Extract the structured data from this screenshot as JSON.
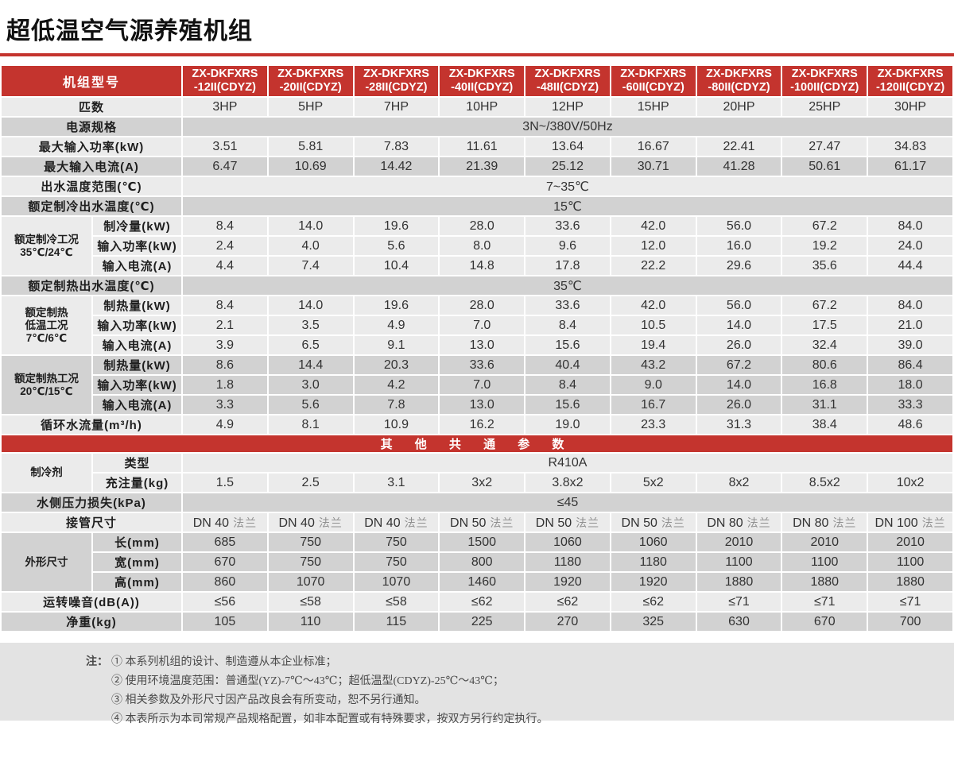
{
  "page": {
    "title": "超低温空气源养殖机组"
  },
  "colors": {
    "red": "#c4342e",
    "row_light": "#ebebeb",
    "row_dark": "#d2d2d2",
    "note_bg": "#e3e3e3"
  },
  "table": {
    "header": {
      "label": "机组型号",
      "model_prefix": "ZX-DKFXRS",
      "model_suffixes": [
        "-12II(CDYZ)",
        "-20II(CDYZ)",
        "-28II(CDYZ)",
        "-40II(CDYZ)",
        "-48II(CDYZ)",
        "-60II(CDYZ)",
        "-80II(CDYZ)",
        "-100II(CDYZ)",
        "-120II(CDYZ)"
      ]
    },
    "flange_suffix": "法兰",
    "rows": [
      {
        "type": "simple",
        "shade": "light",
        "label": "匹数",
        "values": [
          "3HP",
          "5HP",
          "7HP",
          "10HP",
          "12HP",
          "15HP",
          "20HP",
          "25HP",
          "30HP"
        ]
      },
      {
        "type": "merged",
        "shade": "dark",
        "label": "电源规格",
        "value": "3N~/380V/50Hz"
      },
      {
        "type": "simple",
        "shade": "light",
        "label": "最大输入功率(kW)",
        "values": [
          "3.51",
          "5.81",
          "7.83",
          "11.61",
          "13.64",
          "16.67",
          "22.41",
          "27.47",
          "34.83"
        ]
      },
      {
        "type": "simple",
        "shade": "dark",
        "label": "最大输入电流(A)",
        "values": [
          "6.47",
          "10.69",
          "14.42",
          "21.39",
          "25.12",
          "30.71",
          "41.28",
          "50.61",
          "61.17"
        ]
      },
      {
        "type": "merged",
        "shade": "light",
        "label": "出水温度范围(℃)",
        "value": "7~35℃"
      },
      {
        "type": "merged",
        "shade": "dark",
        "label": "额定制冷出水温度(℃)",
        "value": "15℃"
      },
      {
        "type": "group",
        "shade": "light",
        "label": "额定制冷工况\n35℃/24℃",
        "rows": [
          {
            "label": "制冷量(kW)",
            "values": [
              "8.4",
              "14.0",
              "19.6",
              "28.0",
              "33.6",
              "42.0",
              "56.0",
              "67.2",
              "84.0"
            ]
          },
          {
            "label": "输入功率(kW)",
            "values": [
              "2.4",
              "4.0",
              "5.6",
              "8.0",
              "9.6",
              "12.0",
              "16.0",
              "19.2",
              "24.0"
            ]
          },
          {
            "label": "输入电流(A)",
            "values": [
              "4.4",
              "7.4",
              "10.4",
              "14.8",
              "17.8",
              "22.2",
              "29.6",
              "35.6",
              "44.4"
            ]
          }
        ]
      },
      {
        "type": "merged",
        "shade": "dark",
        "label": "额定制热出水温度(℃)",
        "value": "35℃"
      },
      {
        "type": "group",
        "shade": "light",
        "label": "额定制热\n低温工况\n7℃/6℃",
        "rows": [
          {
            "label": "制热量(kW)",
            "values": [
              "8.4",
              "14.0",
              "19.6",
              "28.0",
              "33.6",
              "42.0",
              "56.0",
              "67.2",
              "84.0"
            ]
          },
          {
            "label": "输入功率(kW)",
            "values": [
              "2.1",
              "3.5",
              "4.9",
              "7.0",
              "8.4",
              "10.5",
              "14.0",
              "17.5",
              "21.0"
            ]
          },
          {
            "label": "输入电流(A)",
            "values": [
              "3.9",
              "6.5",
              "9.1",
              "13.0",
              "15.6",
              "19.4",
              "26.0",
              "32.4",
              "39.0"
            ]
          }
        ]
      },
      {
        "type": "group",
        "shade": "dark",
        "label": "额定制热工况\n20℃/15℃",
        "rows": [
          {
            "label": "制热量(kW)",
            "values": [
              "8.6",
              "14.4",
              "20.3",
              "33.6",
              "40.4",
              "43.2",
              "67.2",
              "80.6",
              "86.4"
            ]
          },
          {
            "label": "输入功率(kW)",
            "values": [
              "1.8",
              "3.0",
              "4.2",
              "7.0",
              "8.4",
              "9.0",
              "14.0",
              "16.8",
              "18.0"
            ]
          },
          {
            "label": "输入电流(A)",
            "values": [
              "3.3",
              "5.6",
              "7.8",
              "13.0",
              "15.6",
              "16.7",
              "26.0",
              "31.1",
              "33.3"
            ]
          }
        ]
      },
      {
        "type": "simple",
        "shade": "light",
        "label": "循环水流量(m³/h)",
        "values": [
          "4.9",
          "8.1",
          "10.9",
          "16.2",
          "19.0",
          "23.3",
          "31.3",
          "38.4",
          "48.6"
        ]
      },
      {
        "type": "band",
        "label": "其 他 共 通 参 数"
      },
      {
        "type": "group",
        "shade": "light",
        "label": "制冷剂",
        "rows": [
          {
            "label": "类型",
            "merged": "R410A"
          },
          {
            "label": "充注量(kg)",
            "values": [
              "1.5",
              "2.5",
              "3.1",
              "3x2",
              "3.8x2",
              "5x2",
              "8x2",
              "8.5x2",
              "10x2"
            ]
          }
        ]
      },
      {
        "type": "merged",
        "shade": "dark",
        "label": "水侧压力损失(kPa)",
        "value": "≤45"
      },
      {
        "type": "simple",
        "shade": "light",
        "label": "接管尺寸",
        "flange": true,
        "values": [
          "DN 40",
          "DN 40",
          "DN 40",
          "DN 50",
          "DN 50",
          "DN 50",
          "DN 80",
          "DN 80",
          "DN 100"
        ]
      },
      {
        "type": "group",
        "shade": "dark",
        "label": "外形尺寸",
        "rows": [
          {
            "label": "长(mm)",
            "values": [
              "685",
              "750",
              "750",
              "1500",
              "1060",
              "1060",
              "2010",
              "2010",
              "2010"
            ]
          },
          {
            "label": "宽(mm)",
            "values": [
              "670",
              "750",
              "750",
              "800",
              "1180",
              "1180",
              "1100",
              "1100",
              "1100"
            ]
          },
          {
            "label": "高(mm)",
            "values": [
              "860",
              "1070",
              "1070",
              "1460",
              "1920",
              "1920",
              "1880",
              "1880",
              "1880"
            ]
          }
        ]
      },
      {
        "type": "simple",
        "shade": "light",
        "label": "运转噪音(dB(A))",
        "values": [
          "≤56",
          "≤58",
          "≤58",
          "≤62",
          "≤62",
          "≤62",
          "≤71",
          "≤71",
          "≤71"
        ]
      },
      {
        "type": "simple",
        "shade": "dark",
        "label": "净重(kg)",
        "values": [
          "105",
          "110",
          "115",
          "225",
          "270",
          "325",
          "630",
          "670",
          "700"
        ]
      }
    ]
  },
  "notes": {
    "prefix": "注：",
    "items": [
      "① 本系列机组的设计、制造遵从本企业标准；",
      "② 使用环境温度范围：普通型(YZ)-7℃～43℃；超低温型(CDYZ)-25℃～43℃；",
      "③ 相关参数及外形尺寸因产品改良会有所变动，恕不另行通知。",
      "④ 本表所示为本司常规产品规格配置，如非本配置或有特殊要求，按双方另行约定执行。"
    ]
  }
}
